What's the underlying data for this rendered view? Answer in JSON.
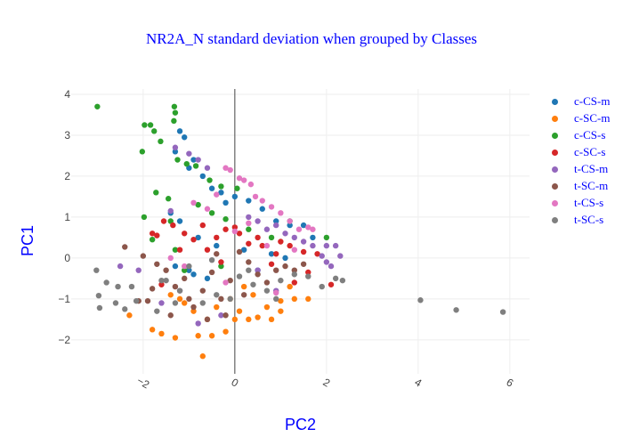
{
  "chart_data": {
    "type": "scatter",
    "title": "NR2A_N standard deviation when grouped by Classes",
    "xlabel": "PC2",
    "ylabel": "PC1",
    "xlim": [
      -3.57,
      6.43
    ],
    "ylim": [
      -2.83,
      4.13
    ],
    "xticks": [
      -2,
      0,
      2,
      4,
      6
    ],
    "xtick_labels": [
      "−2",
      "0",
      "2",
      "4",
      "6"
    ],
    "yticks": [
      -2,
      -1,
      0,
      1,
      2,
      3,
      4
    ],
    "ytick_labels": [
      "−2",
      "−1",
      "0",
      "1",
      "2",
      "3",
      "4"
    ],
    "grid": true,
    "legend_position": "right",
    "series": [
      {
        "name": "c-CS-m",
        "color": "#1f77b4",
        "x": [
          -1.2,
          -1.1,
          -1.3,
          -0.9,
          -1.0,
          -0.7,
          -0.5,
          -0.3,
          0.0,
          0.3,
          0.6,
          0.9,
          1.2,
          1.5,
          -1.4,
          -1.2,
          -0.8,
          -0.4,
          0.2,
          0.8,
          -1.0,
          -0.6,
          1.7,
          -1.3,
          -0.9,
          0.5,
          1.1,
          -0.2
        ],
        "y": [
          3.1,
          2.95,
          2.6,
          2.4,
          2.2,
          2.0,
          1.7,
          1.6,
          1.5,
          1.4,
          1.2,
          0.9,
          0.8,
          0.8,
          1.1,
          0.9,
          0.5,
          0.3,
          0.2,
          0.1,
          -0.3,
          -0.5,
          0.5,
          -0.2,
          -0.4,
          -0.3,
          0.0,
          1.35
        ]
      },
      {
        "name": "c-SC-m",
        "color": "#ff7f0e",
        "x": [
          -2.3,
          -1.8,
          -1.6,
          -1.3,
          -1.1,
          -0.8,
          -0.5,
          -0.2,
          0.0,
          0.3,
          0.5,
          0.8,
          1.0,
          1.3,
          1.6,
          -0.7,
          -0.4,
          -0.1,
          0.2,
          0.4,
          0.7,
          1.0,
          -1.4,
          -0.9,
          0.1,
          1.2,
          -0.6,
          -1.2
        ],
        "y": [
          -1.4,
          -1.75,
          -1.85,
          -1.95,
          -1.1,
          -1.9,
          -1.9,
          -1.8,
          -1.5,
          -1.5,
          -1.45,
          -1.5,
          -1.05,
          -1.0,
          -1.0,
          -2.4,
          -1.2,
          -1.0,
          -0.7,
          -0.9,
          -1.2,
          -1.3,
          -0.9,
          -1.3,
          -1.3,
          -0.7,
          -1.5,
          -1.0
        ]
      },
      {
        "name": "c-CS-s",
        "color": "#2ca02c",
        "x": [
          -3.0,
          -1.97,
          -1.84,
          -1.76,
          -1.62,
          -1.32,
          -1.3,
          -1.33,
          -2.02,
          -1.25,
          -1.05,
          -0.85,
          -0.55,
          -0.3,
          0.05,
          -1.72,
          -1.45,
          -1.98,
          -1.4,
          -0.8,
          -0.5,
          -0.2,
          0.3,
          0.8,
          1.2,
          2.0,
          -1.3,
          -1.8,
          -1.1,
          -0.3
        ],
        "y": [
          3.7,
          3.25,
          3.25,
          3.1,
          2.85,
          3.7,
          3.55,
          3.35,
          2.6,
          2.4,
          2.3,
          2.25,
          1.9,
          1.75,
          1.7,
          1.6,
          1.45,
          1.0,
          0.9,
          1.3,
          1.1,
          0.95,
          0.7,
          0.5,
          0.9,
          0.5,
          0.2,
          0.45,
          -0.3,
          -0.2
        ]
      },
      {
        "name": "c-SC-s",
        "color": "#d62728",
        "x": [
          -1.8,
          -1.7,
          -1.55,
          -1.35,
          -1.1,
          -0.9,
          -0.7,
          -0.4,
          -0.2,
          0.1,
          0.3,
          0.6,
          0.9,
          1.2,
          1.5,
          1.8,
          2.1,
          -1.6,
          -1.2,
          -0.6,
          0.0,
          0.5,
          1.0,
          1.6,
          -0.3,
          0.8,
          1.3
        ],
        "y": [
          0.6,
          0.55,
          0.9,
          0.8,
          0.6,
          0.45,
          0.8,
          0.5,
          0.7,
          0.6,
          0.35,
          0.3,
          0.1,
          0.3,
          0.15,
          0.1,
          -0.65,
          -0.65,
          0.2,
          0.2,
          0.75,
          0.5,
          0.4,
          -0.35,
          -0.1,
          -0.15,
          -0.6
        ]
      },
      {
        "name": "t-CS-m",
        "color": "#9467bd",
        "x": [
          -1.3,
          -1.0,
          -0.8,
          -0.6,
          0.3,
          0.5,
          0.7,
          0.9,
          1.1,
          1.3,
          1.5,
          1.7,
          1.9,
          2.0,
          2.1,
          2.2,
          2.3,
          2.0,
          -2.5,
          -2.1,
          -1.6,
          -1.2,
          -0.8,
          -0.3,
          0.5,
          0.9,
          -1.4
        ],
        "y": [
          2.7,
          2.55,
          2.4,
          2.2,
          1.0,
          0.9,
          0.7,
          0.8,
          0.6,
          0.5,
          0.4,
          0.3,
          0.05,
          0.3,
          -0.2,
          0.3,
          0.05,
          -0.1,
          -0.2,
          -0.3,
          -1.1,
          -0.8,
          -1.6,
          -1.4,
          -0.3,
          -0.8,
          1.15
        ]
      },
      {
        "name": "t-SC-m",
        "color": "#8c564b",
        "x": [
          -2.4,
          -2.0,
          -1.9,
          -1.7,
          -1.5,
          -1.3,
          -1.1,
          -0.9,
          -0.7,
          -0.5,
          -0.3,
          -0.1,
          0.1,
          0.3,
          0.5,
          0.7,
          0.9,
          1.1,
          1.3,
          1.5,
          -1.8,
          -1.4,
          -1.0,
          -0.6,
          -0.2,
          0.2,
          -2.1,
          -0.4
        ],
        "y": [
          0.27,
          0.05,
          -1.05,
          -0.15,
          -0.3,
          -0.7,
          -0.5,
          -1.2,
          -0.8,
          -0.35,
          -1.0,
          -0.55,
          0.15,
          -0.1,
          -0.4,
          -0.6,
          -0.3,
          -0.2,
          -0.3,
          -0.15,
          -0.75,
          -1.4,
          -1.0,
          -1.5,
          -1.4,
          -0.9,
          -1.05,
          0.1
        ]
      },
      {
        "name": "t-CS-s",
        "color": "#e377c2",
        "x": [
          -0.2,
          -0.1,
          0.1,
          0.2,
          0.35,
          0.45,
          0.6,
          0.8,
          1.0,
          1.2,
          1.4,
          1.6,
          1.7,
          -0.4,
          -0.6,
          -0.9,
          -1.4,
          -1.1,
          0.0,
          0.3,
          0.7,
          1.3,
          0.9,
          -0.2
        ],
        "y": [
          2.2,
          2.15,
          1.95,
          1.9,
          1.8,
          1.5,
          1.4,
          1.25,
          1.1,
          0.9,
          0.7,
          0.75,
          0.7,
          1.55,
          1.2,
          1.35,
          0.0,
          -0.2,
          0.65,
          0.85,
          0.3,
          0.2,
          -0.85,
          -0.6
        ]
      },
      {
        "name": "t-SC-s",
        "color": "#7f7f7f",
        "x": [
          -3.02,
          -2.97,
          -2.95,
          -2.8,
          -2.6,
          -2.55,
          -2.4,
          -2.25,
          -2.15,
          -1.7,
          -1.5,
          -1.3,
          -1.0,
          -0.7,
          -0.4,
          -0.1,
          0.1,
          0.4,
          0.7,
          1.0,
          1.3,
          1.6,
          1.9,
          2.2,
          2.35,
          -1.6,
          -1.2,
          -0.5,
          0.3,
          0.9,
          4.05,
          4.83,
          5.85
        ],
        "y": [
          -0.3,
          -0.92,
          -1.22,
          -0.6,
          -1.1,
          -0.7,
          -1.25,
          -0.7,
          -1.05,
          -1.3,
          -0.55,
          -1.1,
          -0.2,
          -1.1,
          -0.9,
          -1.0,
          -0.45,
          -0.65,
          -0.8,
          -0.55,
          -0.4,
          -0.45,
          -0.7,
          -0.5,
          -0.55,
          -0.55,
          -0.8,
          -0.05,
          -0.3,
          -1.0,
          -1.03,
          -1.27,
          -1.32
        ]
      }
    ]
  }
}
